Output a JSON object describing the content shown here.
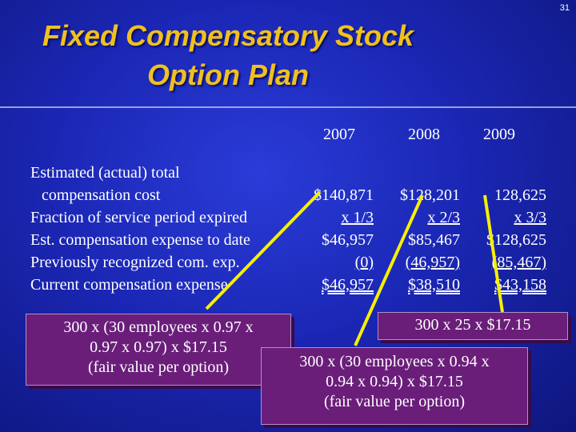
{
  "page_number": "31",
  "title": {
    "line1": "Fixed  Compensatory Stock",
    "line2": "Option Plan"
  },
  "years": [
    "2007",
    "2008",
    "2009"
  ],
  "rows": [
    {
      "label_line1": "Estimated (actual) total",
      "label_line2": "compensation cost",
      "values": [
        "$140,871",
        "$128,201",
        "128,625"
      ]
    },
    {
      "label": "Fraction of service period expired",
      "values": [
        "x  1/3",
        "x  2/3",
        "x   3/3"
      ]
    },
    {
      "label": "Est. compensation expense to date",
      "values": [
        "$46,957",
        "$85,467",
        "$128,625"
      ]
    },
    {
      "label": "Previously recognized com. exp.",
      "values": [
        "(0)",
        "(46,957)",
        "(85,467)"
      ]
    },
    {
      "label": "Current compensation expense",
      "values": [
        "$46,957",
        "$38,510",
        "$43,158"
      ]
    }
  ],
  "callouts": {
    "left": [
      "300  x (30 employees x 0.97 x",
      "0.97 x 0.97) x $17.15",
      "(fair value per option)"
    ],
    "middle": [
      "300 x (30 employees x 0.94 x",
      "0.94 x 0.94) x $17.15",
      "(fair value per option)"
    ],
    "right": "300  x 25 x $17.15"
  },
  "colors": {
    "title": "#f0c020",
    "arrow": "#f5f000",
    "callout_bg": "#6a1e7a",
    "background": "#1b27b5"
  }
}
